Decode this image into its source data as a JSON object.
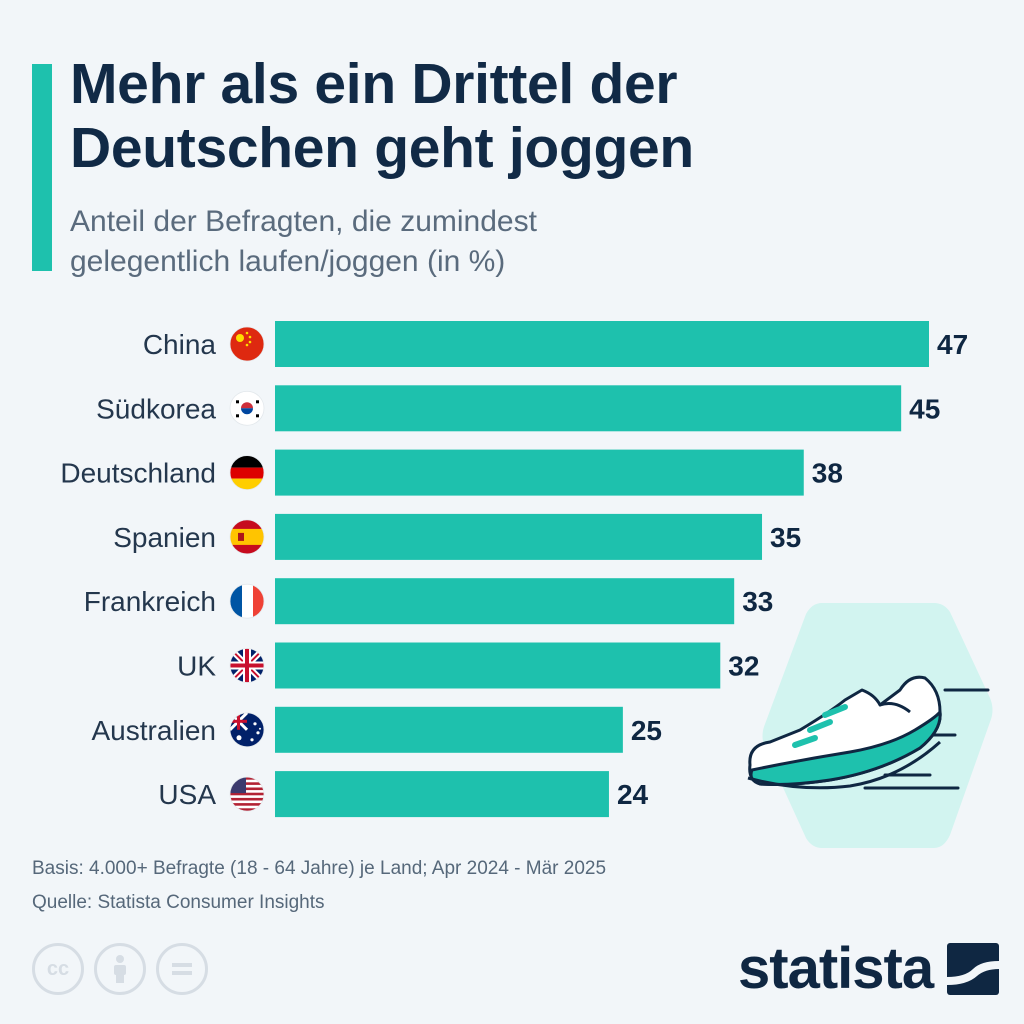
{
  "header": {
    "title_line1": "Mehr als ein Drittel der",
    "title_line2": "Deutschen geht joggen",
    "subtitle_line1": "Anteil der Befragten, die zumindest",
    "subtitle_line2": "gelegentlich laufen/joggen (in %)"
  },
  "chart_data": {
    "type": "bar",
    "orientation": "horizontal",
    "title": "Mehr als ein Drittel der Deutschen geht joggen",
    "subtitle": "Anteil der Befragten, die zumindest gelegentlich laufen/joggen (in %)",
    "categories": [
      "China",
      "Südkorea",
      "Deutschland",
      "Spanien",
      "Frankreich",
      "UK",
      "Australien",
      "USA"
    ],
    "flags": [
      "china-flag-icon",
      "south-korea-flag-icon",
      "germany-flag-icon",
      "spain-flag-icon",
      "france-flag-icon",
      "uk-flag-icon",
      "australia-flag-icon",
      "usa-flag-icon"
    ],
    "values": [
      47,
      45,
      38,
      35,
      33,
      32,
      25,
      24
    ],
    "xlim": [
      0,
      50
    ],
    "grid": false,
    "bar_color": "#1ec1ad",
    "value_label_color": "#0f2742"
  },
  "footer": {
    "basis": "Basis: 4.000+ Befragte (18 - 64 Jahre) je Land; Apr 2024 - Mär 2025",
    "source": "Quelle: Statista Consumer Insights",
    "logo_text": "statista"
  },
  "colors": {
    "accent": "#1ec1ad",
    "navy": "#0f2742",
    "background": "#f2f6f9",
    "illustration_bg": "#d2f4f0"
  },
  "icons": [
    "cc-icon",
    "attribution-icon",
    "no-derivatives-icon",
    "running-shoe-illustration",
    "statista-logo-icon"
  ]
}
